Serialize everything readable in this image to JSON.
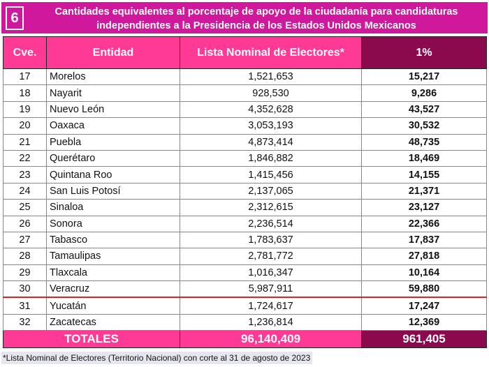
{
  "title": {
    "number": "6",
    "line1": "Cantidades equivalentes al porcentaje de apoyo de la ciudadanía para candidaturas",
    "line2": "independientes a la Presidencia de los Estados Unidos Mexicanos"
  },
  "headers": {
    "cve": "Cve.",
    "entidad": "Entidad",
    "lista": "Lista Nominal de Electores*",
    "pct": "1%"
  },
  "rows": [
    {
      "cve": "17",
      "entidad": "Morelos",
      "lista": "1,521,653",
      "pct": "15,217"
    },
    {
      "cve": "18",
      "entidad": "Nayarit",
      "lista": "928,530",
      "pct": "9,286"
    },
    {
      "cve": "19",
      "entidad": "Nuevo León",
      "lista": "4,352,628",
      "pct": "43,527"
    },
    {
      "cve": "20",
      "entidad": "Oaxaca",
      "lista": "3,053,193",
      "pct": "30,532"
    },
    {
      "cve": "21",
      "entidad": "Puebla",
      "lista": "4,873,414",
      "pct": "48,735"
    },
    {
      "cve": "22",
      "entidad": "Querétaro",
      "lista": "1,846,882",
      "pct": "18,469"
    },
    {
      "cve": "23",
      "entidad": "Quintana Roo",
      "lista": "1,415,456",
      "pct": "14,155"
    },
    {
      "cve": "24",
      "entidad": "San Luis Potosí",
      "lista": "2,137,065",
      "pct": "21,371"
    },
    {
      "cve": "25",
      "entidad": "Sinaloa",
      "lista": "2,312,615",
      "pct": "23,127"
    },
    {
      "cve": "26",
      "entidad": "Sonora",
      "lista": "2,236,514",
      "pct": "22,366"
    },
    {
      "cve": "27",
      "entidad": "Tabasco",
      "lista": "1,783,637",
      "pct": "17,837"
    },
    {
      "cve": "28",
      "entidad": "Tamaulipas",
      "lista": "2,781,772",
      "pct": "27,818"
    },
    {
      "cve": "29",
      "entidad": "Tlaxcala",
      "lista": "1,016,347",
      "pct": "10,164"
    },
    {
      "cve": "30",
      "entidad": "Veracruz",
      "lista": "5,987,911",
      "pct": "59,880"
    },
    {
      "cve": "31",
      "entidad": "Yucatán",
      "lista": "1,724,617",
      "pct": "17,247"
    },
    {
      "cve": "32",
      "entidad": "Zacatecas",
      "lista": "1,236,814",
      "pct": "12,369"
    }
  ],
  "totals": {
    "label": "TOTALES",
    "lista": "96,140,409",
    "pct": "961,405"
  },
  "footnote": "*Lista Nominal de Electores (Territorio Nacional) con corte al 31 de agosto de 2023"
}
